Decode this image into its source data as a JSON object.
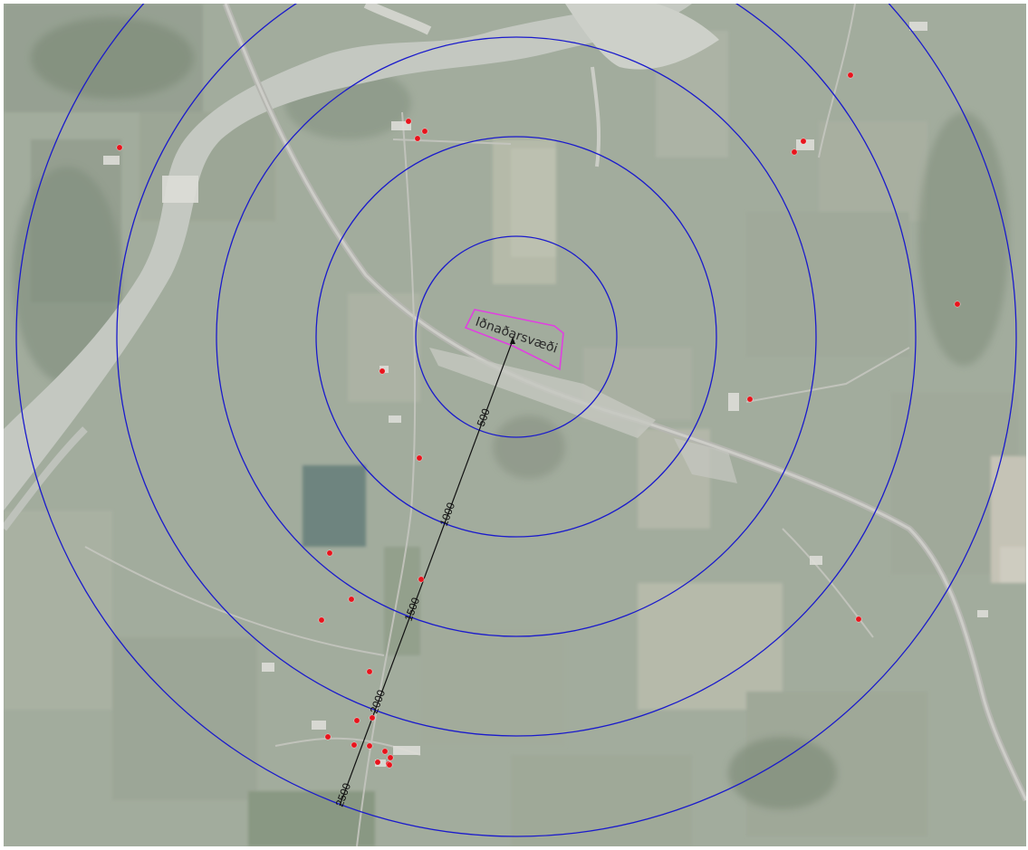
{
  "map": {
    "industrial_area_label": "Iðnaðarsvæði",
    "colors": {
      "rings": "#1a1acc",
      "residences": "#e8141c",
      "industrial_area_outline": "#e040e0",
      "scale_line": "#111111"
    },
    "buffer_ring_distances_m": [
      500,
      1000,
      1500,
      2000,
      2500
    ],
    "scale_labels": [
      "500",
      "1000",
      "1500",
      "2000",
      "2500"
    ],
    "residence_count": 27
  }
}
